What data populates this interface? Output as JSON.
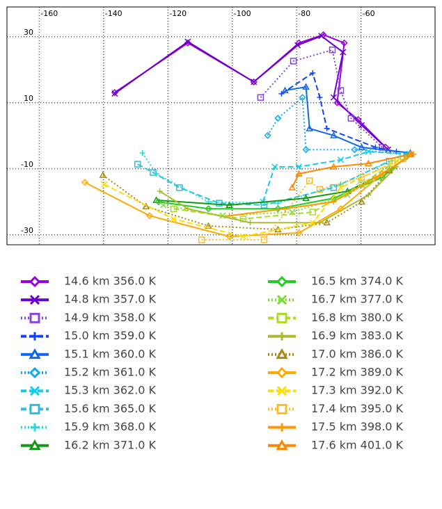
{
  "chart_data": {
    "type": "line",
    "xlim": [
      -170,
      -37
    ],
    "ylim": [
      -33,
      39
    ],
    "xticks": [
      -160,
      -140,
      -120,
      -100,
      -80,
      -60
    ],
    "yticks": [
      30,
      10,
      -10,
      -30
    ],
    "grid": true,
    "series": [
      {
        "name": "14.6 km 356.0 K",
        "color": "#9900dd",
        "style": "solid",
        "marker": "diamond",
        "x": [
          -136.5,
          -113.8,
          -93.3,
          -79.3,
          -71.7,
          -65.2,
          -67.4,
          -60.9,
          -52.3
        ],
        "values": [
          13.1,
          28.1,
          16.3,
          28.1,
          30.6,
          28.1,
          10.0,
          4.9,
          -3.5
        ]
      },
      {
        "name": "14.8 km 357.0 K",
        "color": "#6a00cc",
        "style": "solid",
        "marker": "x",
        "x": [
          -136.5,
          -113.8,
          -93.3,
          -79.7,
          -72.3,
          -65.6,
          -68.5,
          -59.8,
          -51.6
        ],
        "values": [
          12.8,
          28.5,
          16.3,
          27.4,
          30.2,
          25.3,
          11.6,
          3.2,
          -4.2
        ]
      },
      {
        "name": "14.9 km 358.0 K",
        "color": "#8844dd",
        "style": "dotted",
        "marker": "square",
        "x": [
          -91.2,
          -81.0,
          -68.9,
          -66.3,
          -63.1,
          -53.4
        ],
        "values": [
          11.6,
          22.6,
          26.0,
          13.7,
          5.3,
          -3.5
        ]
      },
      {
        "name": "15.0 km 359.0 K",
        "color": "#1144ee",
        "style": "dashed",
        "marker": "plus",
        "x": [
          -84.7,
          -75.0,
          -72.8,
          -70.6,
          -55.5,
          -49.0
        ],
        "values": [
          12.7,
          19.0,
          11.6,
          2.2,
          -3.5,
          -4.8
        ]
      },
      {
        "name": "15.1 km 360.0 K",
        "color": "#1166ee",
        "style": "solid",
        "marker": "triangle",
        "x": [
          -83.6,
          -77.1,
          -76.0,
          -68.5,
          -59.8,
          -44.7
        ],
        "values": [
          13.7,
          14.8,
          2.2,
          0.1,
          -3.5,
          -5.2
        ]
      },
      {
        "name": "15.2 km 361.0 K",
        "color": "#11aaee",
        "style": "dotted",
        "marker": "diamond",
        "x": [
          -89.0,
          -85.8,
          -78.2,
          -77.1,
          -62.0,
          -45.8
        ],
        "values": [
          0.1,
          5.3,
          11.6,
          -4.2,
          -4.2,
          -5.6
        ]
      },
      {
        "name": "15.3 km 362.0 K",
        "color": "#11ccee",
        "style": "dashed",
        "marker": "x",
        "x": [
          -90.5,
          -86.8,
          -79.3,
          -66.3,
          -57.7,
          -44.7
        ],
        "values": [
          -20.0,
          -9.4,
          -9.4,
          -7.3,
          -4.8,
          -5.6
        ]
      },
      {
        "name": "15.6 km 365.0 K",
        "color": "#33bbdd",
        "style": "dashed",
        "marker": "square",
        "x": [
          -129.4,
          -124.6,
          -116.4,
          -104.1,
          -90.1,
          -68.5,
          -51.2
        ],
        "values": [
          -8.6,
          -11.1,
          -15.7,
          -20.4,
          -21.0,
          -15.7,
          -7.7
        ]
      },
      {
        "name": "15.9 km 368.0 K",
        "color": "#22dddd",
        "style": "dotted",
        "marker": "plus",
        "x": [
          -127.9,
          -123.6,
          -107.4,
          -85.8,
          -66.3,
          -47.9
        ],
        "values": [
          -5.2,
          -11.5,
          -20.0,
          -20.4,
          -14.7,
          -6.3
        ]
      },
      {
        "name": "16.2 km 371.0 K",
        "color": "#119911",
        "style": "solid",
        "marker": "triangle",
        "x": [
          -123.6,
          -100.9,
          -77.1,
          -64.2,
          -51.2,
          -44.7
        ],
        "values": [
          -19.5,
          -21.0,
          -18.9,
          -16.8,
          -10.5,
          -5.6
        ]
      },
      {
        "name": "16.5 km 374.0 K",
        "color": "#22cc22",
        "style": "solid",
        "marker": "diamond",
        "x": [
          -122.9,
          -107.4,
          -85.8,
          -68.5,
          -53.4,
          -45.8
        ],
        "values": [
          -20.0,
          -22.1,
          -22.1,
          -18.9,
          -12.6,
          -6.3
        ]
      },
      {
        "name": "16.7 km 377.0 K",
        "color": "#77dd33",
        "style": "dotted",
        "marker": "x",
        "x": [
          -121.4,
          -103.0,
          -81.4,
          -64.2,
          -51.2
        ],
        "values": [
          -21.0,
          -24.2,
          -23.1,
          -17.9,
          -10.5
        ]
      },
      {
        "name": "16.8 km 380.0 K",
        "color": "#aadd22",
        "style": "dashed",
        "marker": "square",
        "x": [
          -118.2,
          -96.6,
          -75.0,
          -59.8,
          -50.2
        ],
        "values": [
          -22.1,
          -25.2,
          -23.1,
          -14.7,
          -8.4
        ]
      },
      {
        "name": "16.9 km 383.0 K",
        "color": "#aabb33",
        "style": "solid",
        "marker": "plus",
        "x": [
          -122.5,
          -113.8,
          -94.4,
          -72.8,
          -57.7,
          -49.0
        ],
        "values": [
          -16.8,
          -22.1,
          -26.3,
          -26.3,
          -17.9,
          -9.4
        ]
      },
      {
        "name": "17.0 km 386.0 K",
        "color": "#aa8811",
        "style": "dotted",
        "marker": "triangle",
        "x": [
          -140.2,
          -126.8,
          -107.4,
          -85.8,
          -70.6,
          -59.8,
          -51.2
        ],
        "values": [
          -11.9,
          -21.4,
          -27.3,
          -28.4,
          -26.3,
          -20.0,
          -10.5
        ]
      },
      {
        "name": "17.2 km 389.0 K",
        "color": "#ffaa00",
        "style": "solid",
        "marker": "diamond",
        "x": [
          -145.8,
          -125.7,
          -100.9,
          -79.3,
          -66.3,
          -53.4,
          -44.3
        ],
        "values": [
          -14.1,
          -24.2,
          -30.5,
          -29.4,
          -22.1,
          -11.5,
          -5.6
        ]
      },
      {
        "name": "17.3 km 392.0 K",
        "color": "#ffdd00",
        "style": "dashed",
        "marker": "x",
        "x": [
          -139.8,
          -118.2,
          -96.6,
          -75.0,
          -66.3,
          -49.0
        ],
        "values": [
          -14.7,
          -25.2,
          -30.5,
          -26.3,
          -15.7,
          -7.7
        ]
      },
      {
        "name": "17.4 km 395.0 K",
        "color": "#ffbb22",
        "style": "dotted",
        "marker": "square",
        "x": [
          -109.5,
          -90.1,
          -76.0,
          -72.8,
          -59.8,
          -46.9
        ],
        "values": [
          -31.5,
          -31.5,
          -13.6,
          -16.2,
          -12.6,
          -6.9
        ]
      },
      {
        "name": "17.5 km 398.0 K",
        "color": "#ff9900",
        "style": "solid",
        "marker": "plus",
        "x": [
          -100.9,
          -83.6,
          -68.5,
          -55.5,
          -43.6
        ],
        "values": [
          -24.2,
          -22.1,
          -20.0,
          -12.6,
          -5.6
        ]
      },
      {
        "name": "17.6 km 401.0 K",
        "color": "#ff8800",
        "style": "solid",
        "marker": "triangle",
        "x": [
          -81.4,
          -79.3,
          -68.5,
          -57.7,
          -44.7
        ],
        "values": [
          -15.7,
          -11.5,
          -9.4,
          -8.4,
          -5.6
        ]
      }
    ]
  }
}
